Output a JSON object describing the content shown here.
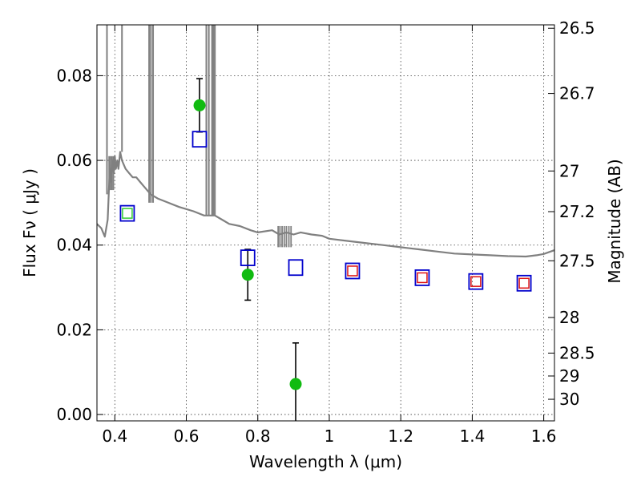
{
  "chart_data": {
    "type": "scatter",
    "title": "",
    "xlabel": "Wavelength  λ (μm)",
    "ylabel": "Flux  Fν  ( μJy )",
    "ylabel_right": "Magnitude (AB)",
    "xlim": [
      0.35,
      1.63
    ],
    "ylim": [
      -0.0015,
      0.092
    ],
    "grid": true,
    "colors": {
      "sed": "#808080",
      "observed": "#11bb11",
      "errorbar": "#000000",
      "model": "#0000cc",
      "inner_green": "#33cc33",
      "inner_red": "#dd1111"
    },
    "x_ticks": [
      {
        "v": 0.4,
        "label": "0.4"
      },
      {
        "v": 0.6,
        "label": "0.6"
      },
      {
        "v": 0.8,
        "label": "0.8"
      },
      {
        "v": 1.0,
        "label": "1"
      },
      {
        "v": 1.2,
        "label": "1.2"
      },
      {
        "v": 1.4,
        "label": "1.4"
      },
      {
        "v": 1.6,
        "label": "1.6"
      }
    ],
    "y_ticks": [
      {
        "v": 0.0,
        "label": "0.00"
      },
      {
        "v": 0.02,
        "label": "0.02"
      },
      {
        "v": 0.04,
        "label": "0.04"
      },
      {
        "v": 0.06,
        "label": "0.06"
      },
      {
        "v": 0.08,
        "label": "0.08"
      }
    ],
    "right_ticks": [
      {
        "label": "26.5",
        "flux": 0.0912
      },
      {
        "label": "26.7",
        "flux": 0.0758
      },
      {
        "label": "27",
        "flux": 0.0575
      },
      {
        "label": "27.2",
        "flux": 0.0479
      },
      {
        "label": "27.5",
        "flux": 0.0363
      },
      {
        "label": "28",
        "flux": 0.0229
      },
      {
        "label": "28.5",
        "flux": 0.0145
      },
      {
        "label": "29",
        "flux": 0.0091
      },
      {
        "label": "30",
        "flux": 0.0036
      }
    ],
    "series": [
      {
        "name": "",
        "kind": "line",
        "x": [
          0.35,
          0.362,
          0.372,
          0.38,
          0.383,
          0.386,
          0.39,
          0.393,
          0.397,
          0.4,
          0.403,
          0.407,
          0.41,
          0.415,
          0.42,
          0.425,
          0.43,
          0.44,
          0.45,
          0.46,
          0.47,
          0.48,
          0.49,
          0.5,
          0.52,
          0.55,
          0.58,
          0.62,
          0.65,
          0.68,
          0.7,
          0.72,
          0.75,
          0.78,
          0.8,
          0.84,
          0.86,
          0.88,
          0.9,
          0.92,
          0.95,
          0.98,
          1.0,
          1.05,
          1.1,
          1.15,
          1.2,
          1.25,
          1.3,
          1.35,
          1.4,
          1.45,
          1.5,
          1.55,
          1.58,
          1.6,
          1.63
        ],
        "y": [
          0.045,
          0.044,
          0.042,
          0.046,
          0.052,
          0.058,
          0.055,
          0.06,
          0.057,
          0.061,
          0.058,
          0.06,
          0.058,
          0.062,
          0.06,
          0.059,
          0.058,
          0.057,
          0.056,
          0.056,
          0.055,
          0.054,
          0.053,
          0.052,
          0.051,
          0.05,
          0.049,
          0.048,
          0.047,
          0.047,
          0.046,
          0.045,
          0.0445,
          0.0435,
          0.043,
          0.0435,
          0.0425,
          0.043,
          0.0425,
          0.043,
          0.0425,
          0.0422,
          0.0415,
          0.041,
          0.0405,
          0.04,
          0.0395,
          0.039,
          0.0385,
          0.038,
          0.0378,
          0.0376,
          0.0374,
          0.0373,
          0.0376,
          0.0379,
          0.0388
        ]
      },
      {
        "name": "",
        "kind": "points",
        "x": [
          0.637,
          0.772,
          0.906
        ],
        "y": [
          0.073,
          0.033,
          0.0072
        ],
        "yerr": [
          0.0063,
          0.006,
          0.0097
        ]
      },
      {
        "name": "",
        "kind": "squares",
        "x": [
          0.435,
          0.637,
          0.772,
          0.906,
          1.065,
          1.26,
          1.41,
          1.545
        ],
        "y": [
          0.0475,
          0.065,
          0.037,
          0.0347,
          0.0339,
          0.0323,
          0.0314,
          0.031
        ],
        "inner": [
          "green",
          "none",
          "none",
          "none",
          "red",
          "red",
          "red",
          "red"
        ]
      }
    ]
  }
}
